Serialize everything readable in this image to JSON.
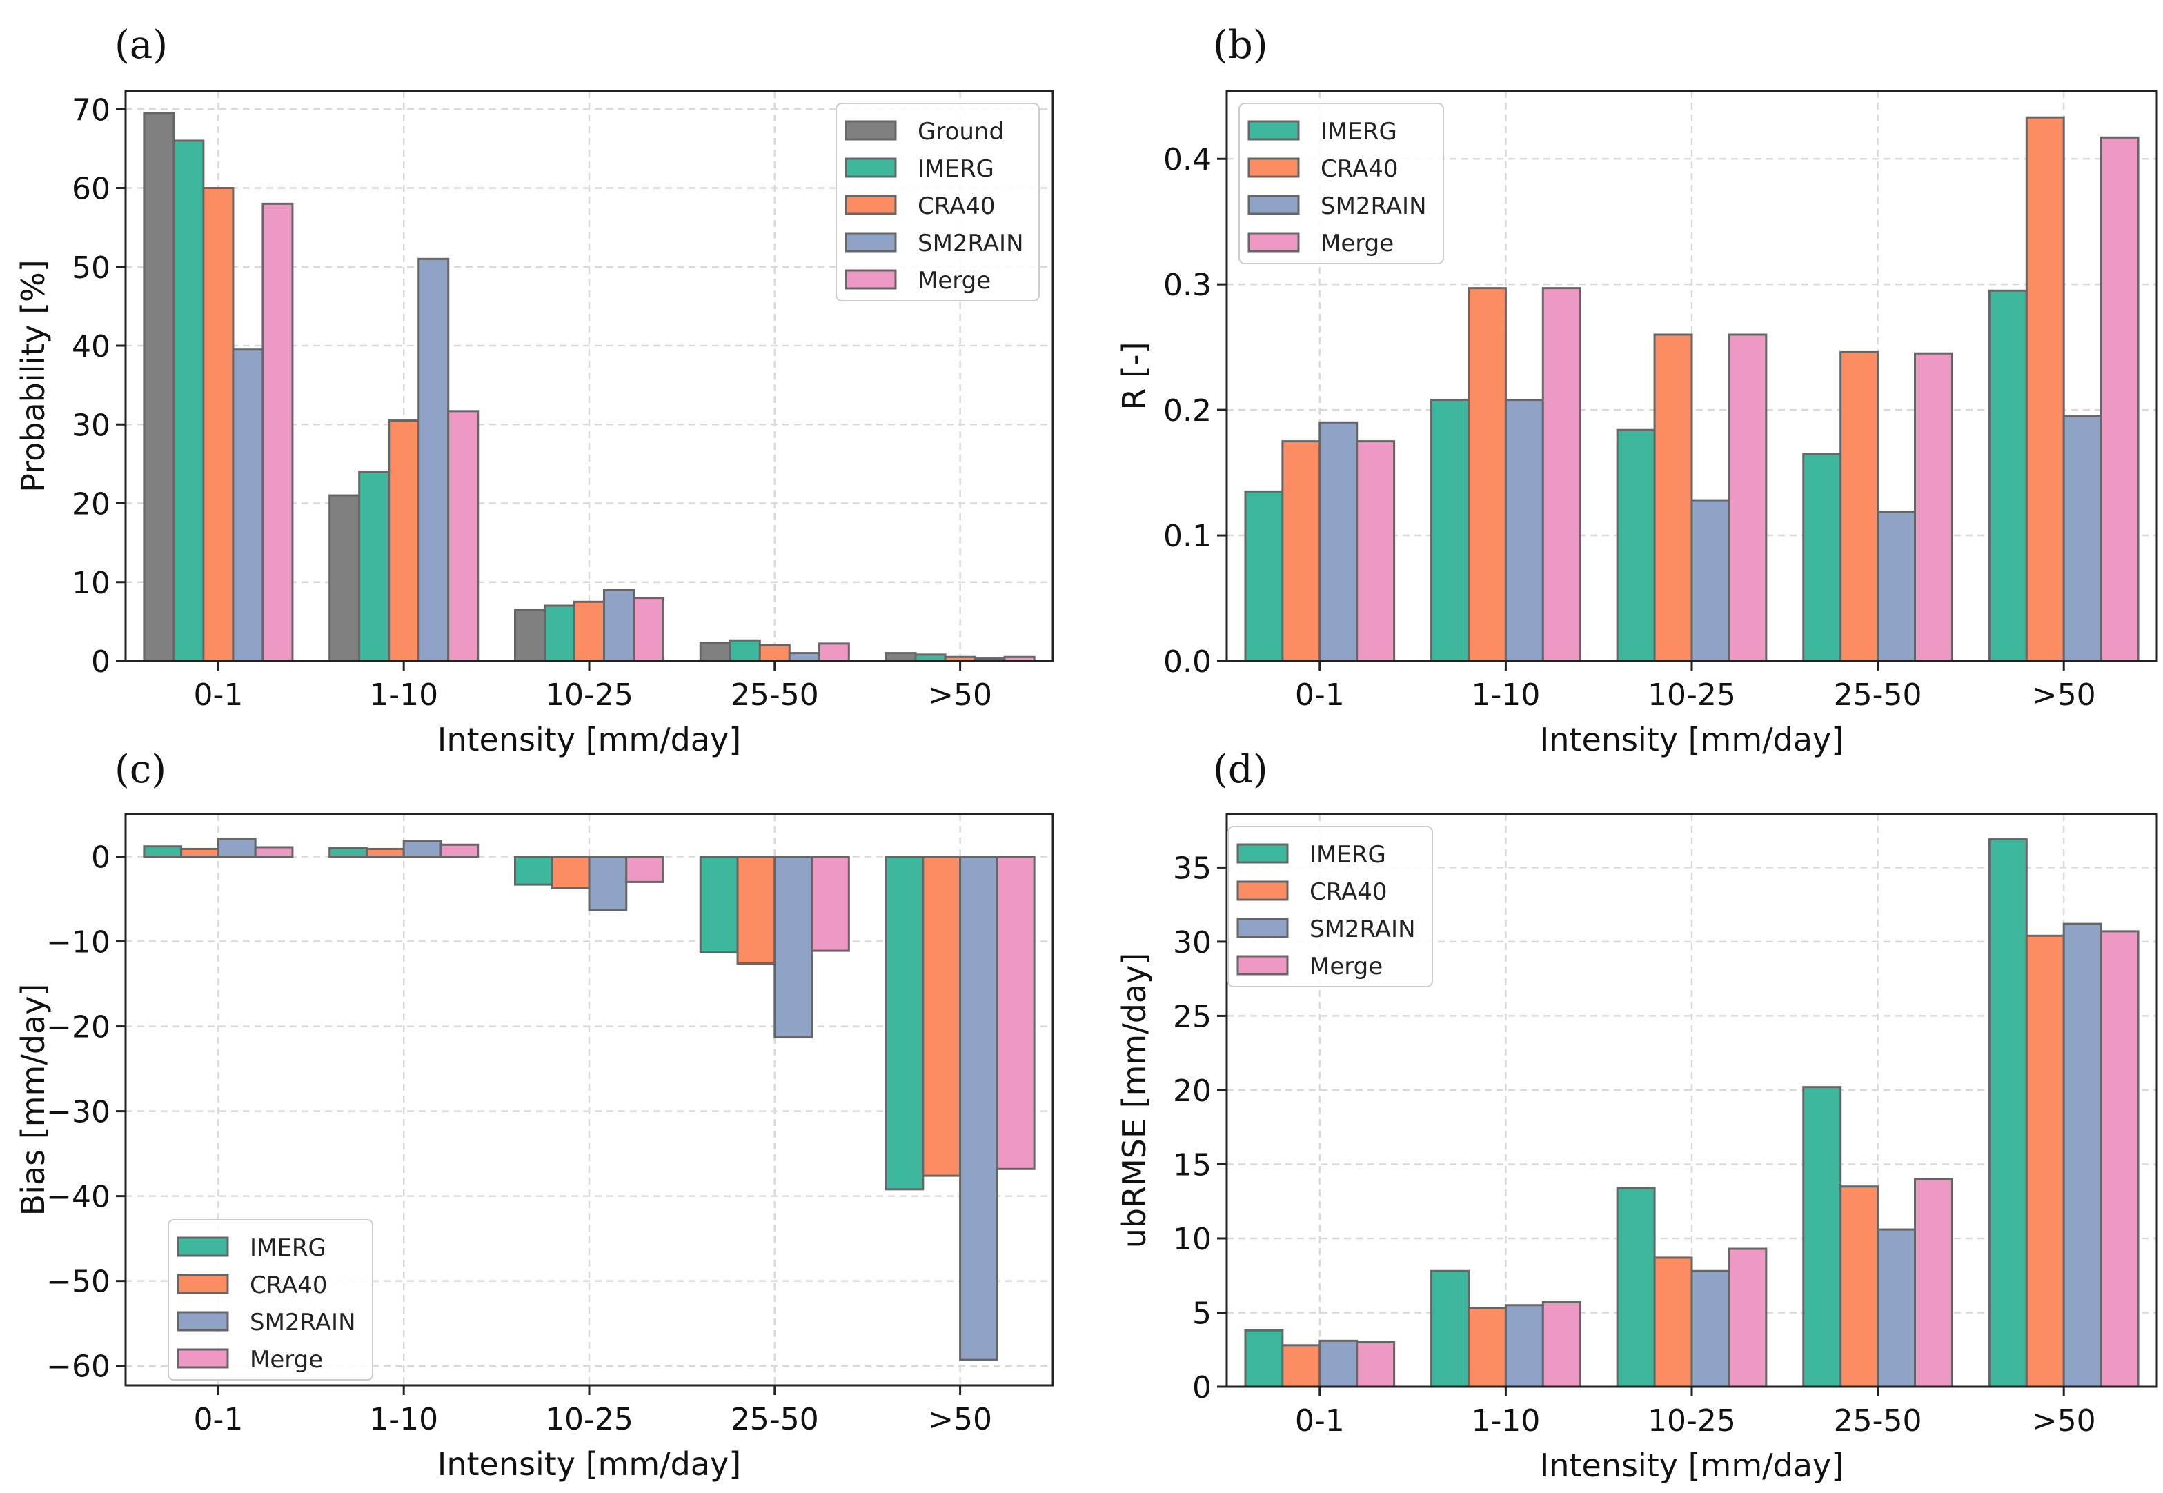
{
  "colors": {
    "Ground": "#808080",
    "IMERG": "#3db89d",
    "CRA40": "#fc8d62",
    "SM2RAIN": "#8fa3c6",
    "Merge": "#ee98c4"
  },
  "chart_data": [
    {
      "type": "bar",
      "panel_label": "(a)",
      "categories": [
        "0-1",
        "1-10",
        "10-25",
        "25-50",
        ">50"
      ],
      "xlabel": "Intensity [mm/day]",
      "ylabel": "Probability [%]",
      "ylim": [
        0,
        72.3
      ],
      "yticks": [
        0,
        10,
        20,
        30,
        40,
        50,
        60,
        70
      ],
      "grid": true,
      "legend": "top-right",
      "series": [
        {
          "name": "Ground",
          "values": [
            69.5,
            21.0,
            6.5,
            2.3,
            1.0
          ]
        },
        {
          "name": "IMERG",
          "values": [
            66.0,
            24.0,
            7.0,
            2.6,
            0.8
          ]
        },
        {
          "name": "CRA40",
          "values": [
            60.0,
            30.5,
            7.5,
            2.0,
            0.5
          ]
        },
        {
          "name": "SM2RAIN",
          "values": [
            39.5,
            51.0,
            9.0,
            1.0,
            0.3
          ]
        },
        {
          "name": "Merge",
          "values": [
            58.0,
            31.7,
            8.0,
            2.2,
            0.5
          ]
        }
      ]
    },
    {
      "type": "bar",
      "panel_label": "(b)",
      "categories": [
        "0-1",
        "1-10",
        "10-25",
        "25-50",
        ">50"
      ],
      "xlabel": "Intensity [mm/day]",
      "ylabel": "R [-]",
      "ylim": [
        0,
        0.454
      ],
      "yticks": [
        0.0,
        0.1,
        0.2,
        0.3,
        0.4
      ],
      "grid": true,
      "legend": "top-left",
      "series": [
        {
          "name": "IMERG",
          "values": [
            0.135,
            0.208,
            0.184,
            0.165,
            0.295
          ]
        },
        {
          "name": "CRA40",
          "values": [
            0.175,
            0.297,
            0.26,
            0.246,
            0.433
          ]
        },
        {
          "name": "SM2RAIN",
          "values": [
            0.19,
            0.208,
            0.128,
            0.119,
            0.195
          ]
        },
        {
          "name": "Merge",
          "values": [
            0.175,
            0.297,
            0.26,
            0.245,
            0.417
          ]
        }
      ]
    },
    {
      "type": "bar",
      "panel_label": "(c)",
      "categories": [
        "0-1",
        "1-10",
        "10-25",
        "25-50",
        ">50"
      ],
      "xlabel": "Intensity [mm/day]",
      "ylabel": "Bias [mm/day]",
      "ylim": [
        -62.3,
        5
      ],
      "yticks": [
        -60,
        -50,
        -40,
        -30,
        -20,
        -10,
        0
      ],
      "grid": true,
      "legend": "lower-left",
      "series": [
        {
          "name": "IMERG",
          "values": [
            1.2,
            1.0,
            -3.3,
            -11.3,
            -39.2
          ]
        },
        {
          "name": "CRA40",
          "values": [
            0.9,
            0.9,
            -3.7,
            -12.6,
            -37.6
          ]
        },
        {
          "name": "SM2RAIN",
          "values": [
            2.1,
            1.8,
            -6.3,
            -21.3,
            -59.3
          ]
        },
        {
          "name": "Merge",
          "values": [
            1.1,
            1.4,
            -3.0,
            -11.1,
            -36.8
          ]
        }
      ]
    },
    {
      "type": "bar",
      "panel_label": "(d)",
      "categories": [
        "0-1",
        "1-10",
        "10-25",
        "25-50",
        ">50"
      ],
      "xlabel": "Intensity [mm/day]",
      "ylabel": "ubRMSE [mm/day]",
      "ylim": [
        0,
        38.6
      ],
      "yticks": [
        0,
        5,
        10,
        15,
        20,
        25,
        30,
        35
      ],
      "grid": true,
      "legend": "top-left",
      "series": [
        {
          "name": "IMERG",
          "values": [
            3.8,
            7.8,
            13.4,
            20.2,
            36.9
          ]
        },
        {
          "name": "CRA40",
          "values": [
            2.8,
            5.3,
            8.7,
            13.5,
            30.4
          ]
        },
        {
          "name": "SM2RAIN",
          "values": [
            3.1,
            5.5,
            7.8,
            10.6,
            31.2
          ]
        },
        {
          "name": "Merge",
          "values": [
            3.0,
            5.7,
            9.3,
            14.0,
            30.7
          ]
        }
      ]
    }
  ]
}
